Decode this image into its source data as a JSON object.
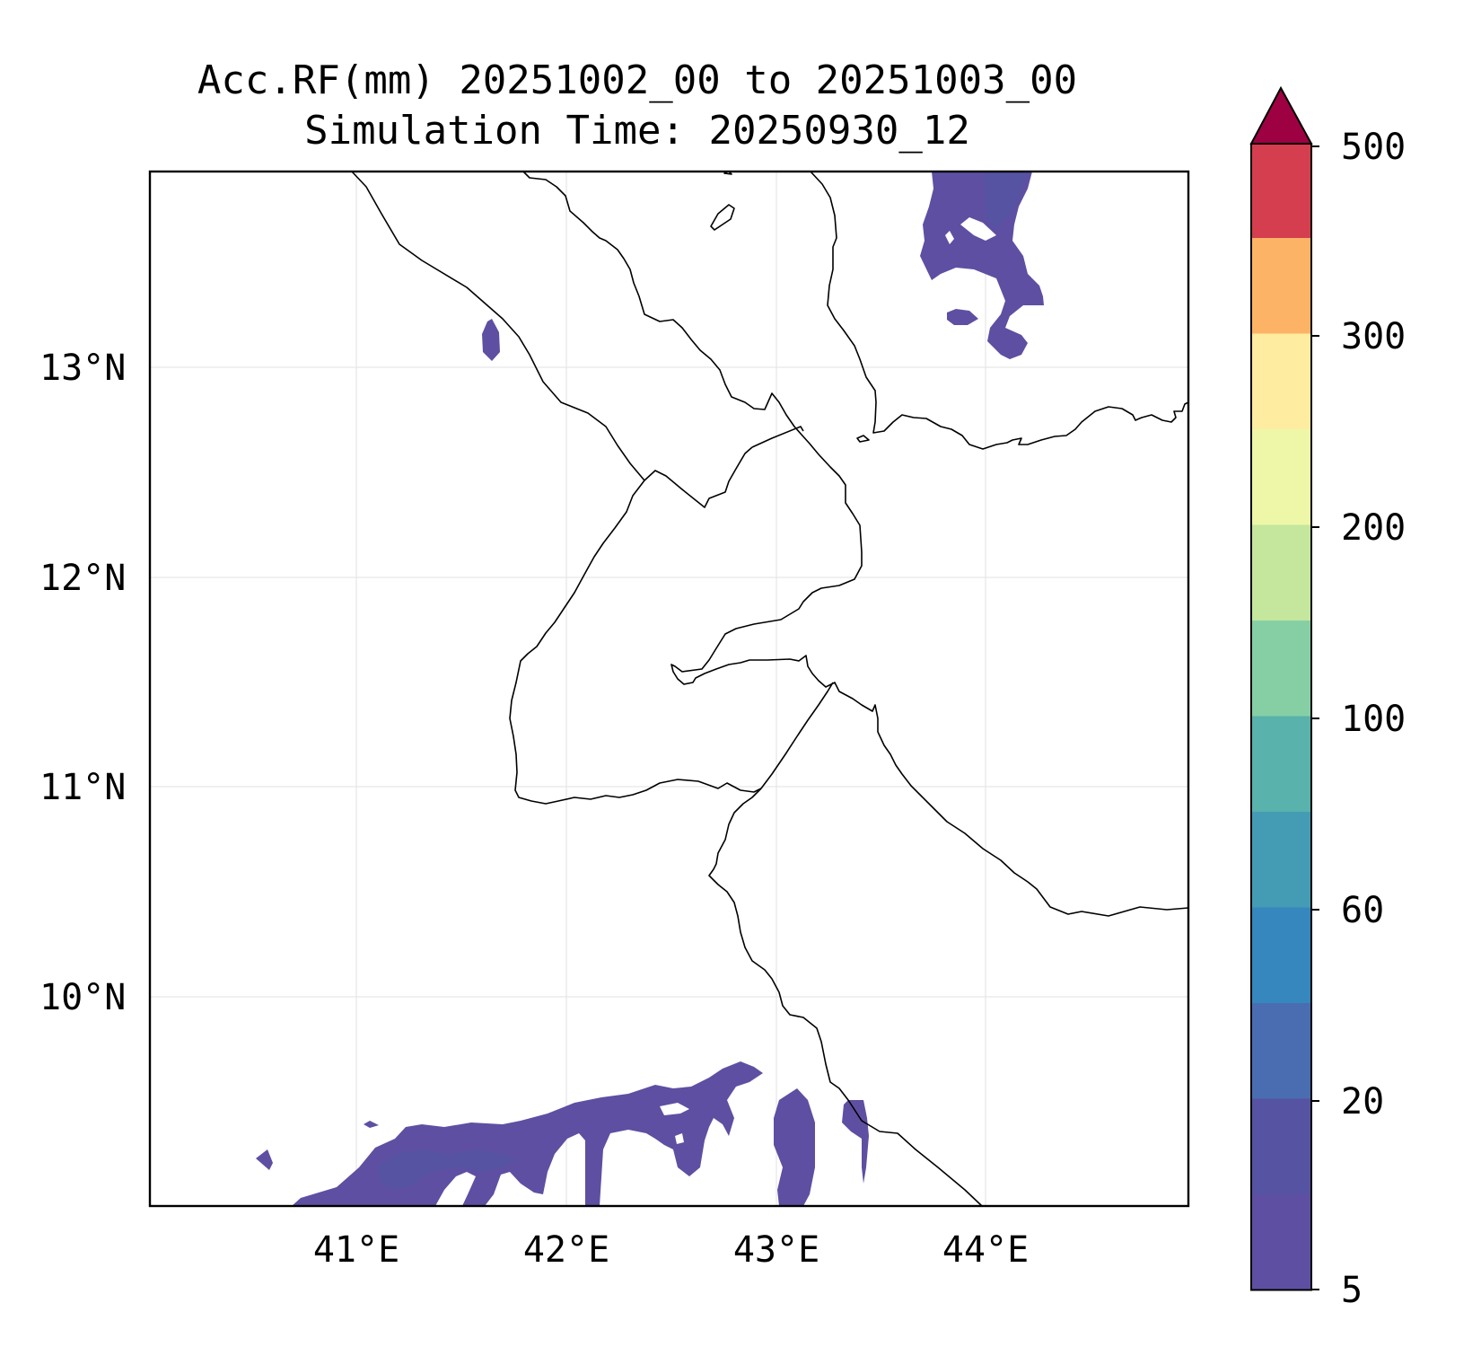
{
  "title": {
    "line1": "Acc.RF(mm) 20251002_00 to 20251003_00",
    "line2": "Simulation Time: 20250930_12"
  },
  "axes": {
    "lat_ticks": [
      "13°N",
      "12°N",
      "11°N",
      "10°N"
    ],
    "lon_ticks": [
      "41°E",
      "42°E",
      "43°E",
      "44°E"
    ],
    "lon_range": [
      40.0,
      45.0
    ],
    "lat_range": [
      9.05,
      13.98
    ],
    "grid": true
  },
  "colorbar": {
    "labels": [
      "500",
      "300",
      "200",
      "100",
      "60",
      "20",
      "5"
    ],
    "levels": [
      5,
      10,
      20,
      40,
      60,
      80,
      100,
      150,
      200,
      250,
      300,
      400,
      500
    ],
    "colors": [
      "#5e4fa2",
      "#5653a3",
      "#4a6db2",
      "#3587bd",
      "#449cb4",
      "#59b2ab",
      "#86cfa5",
      "#c4e69d",
      "#eef7a7",
      "#feeca0",
      "#fdb365",
      "#d53e4f"
    ],
    "extend_color": "#9e0142"
  },
  "chart_data": {
    "type": "contour-map",
    "title": "Acc.RF(mm) 20251002_00 to 20251003_00",
    "subtitle": "Simulation Time: 20250930_12",
    "xlabel": "",
    "ylabel": "",
    "units": "mm",
    "extent": {
      "lon": [
        40.0,
        45.0
      ],
      "lat": [
        9.05,
        13.98
      ]
    },
    "colorbar_levels": [
      5,
      10,
      20,
      40,
      60,
      80,
      100,
      150,
      200,
      250,
      300,
      400,
      500
    ],
    "rain_areas": [
      {
        "region": "south (9.1–9.7°N, 40.6–43.5°E)",
        "max_level": "5–20"
      },
      {
        "region": "north-east (12.9–14.0°N, 43.7–44.3°E)",
        "max_level": "5–20"
      },
      {
        "region": "north-west (13.0–13.2°N, 41.6°E)",
        "max_level": "5–10"
      }
    ]
  }
}
